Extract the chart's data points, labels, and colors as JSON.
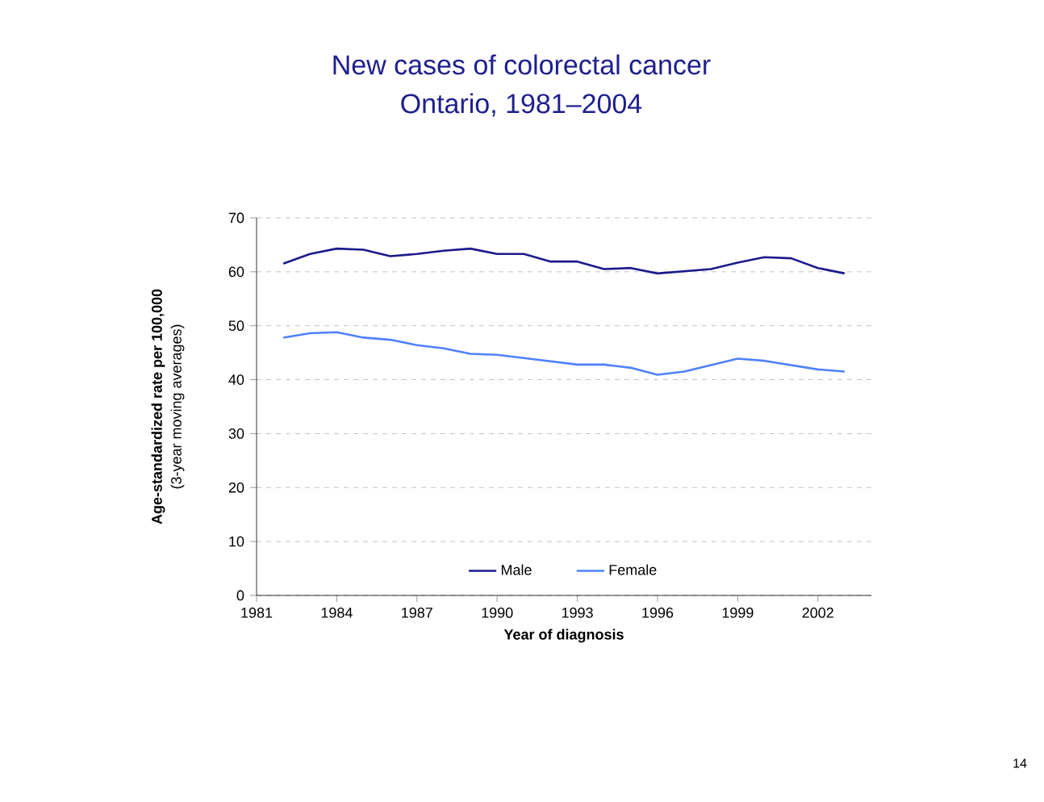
{
  "chart_data": {
    "type": "line",
    "title": "New cases of colorectal cancer",
    "subtitle": "Ontario, 1981–2004",
    "xlabel": "Year of diagnosis",
    "ylabel": "Age-standardized rate per 100,000",
    "annotations": [
      "(3-year moving averages)",
      "14"
    ],
    "x": [
      1982,
      1983,
      1984,
      1985,
      1986,
      1987,
      1988,
      1989,
      1990,
      1991,
      1992,
      1993,
      1994,
      1995,
      1996,
      1997,
      1998,
      1999,
      2000,
      2001,
      2002,
      2003
    ],
    "series": [
      {
        "name": "Male",
        "color": "#1a1a8c",
        "values": [
          61.5,
          63.3,
          64.3,
          64.1,
          62.9,
          63.3,
          63.9,
          64.3,
          63.3,
          63.3,
          61.9,
          61.9,
          60.5,
          60.7,
          59.7,
          60.1,
          60.5,
          61.7,
          62.7,
          62.5,
          60.7,
          59.7
        ]
      },
      {
        "name": "Female",
        "color": "#4f81ff",
        "values": [
          47.8,
          48.6,
          48.8,
          47.8,
          47.4,
          46.4,
          45.8,
          44.8,
          44.6,
          44.0,
          43.4,
          42.8,
          42.8,
          42.2,
          40.9,
          41.5,
          42.7,
          43.9,
          43.5,
          42.7,
          41.9,
          41.5
        ]
      }
    ],
    "xlim": [
      1981,
      2004
    ],
    "ylim": [
      0,
      70
    ],
    "xticks": [
      1981,
      1984,
      1987,
      1990,
      1993,
      1996,
      1999,
      2002
    ],
    "yticks": [
      0,
      10,
      20,
      30,
      40,
      50,
      60,
      70
    ],
    "grid": "y",
    "legend": "bottom",
    "marker": "none",
    "line_style": "solid"
  }
}
